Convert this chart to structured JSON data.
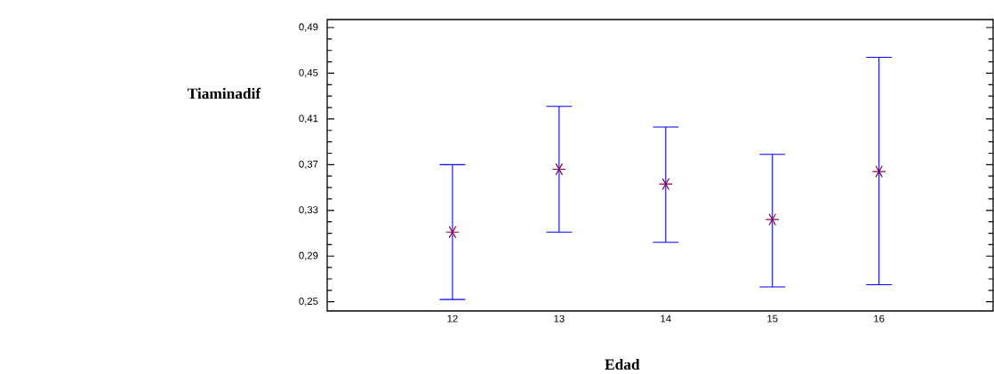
{
  "chart_data": {
    "type": "scatter",
    "xlabel": "Edad",
    "ylabel": "Tiaminadif",
    "categories": [
      "12",
      "13",
      "14",
      "15",
      "16"
    ],
    "series": [
      {
        "color": "#8b0045",
        "values": [
          0.311,
          0.366,
          0.353,
          0.322,
          0.364
        ],
        "errors": [
          [
            0.252,
            0.37
          ],
          [
            0.311,
            0.421
          ],
          [
            0.302,
            0.403
          ],
          [
            0.263,
            0.379
          ],
          [
            0.265,
            0.464
          ]
        ]
      }
    ],
    "ylim": [
      0.242,
      0.497
    ],
    "yticks": [
      {
        "value": 0.25,
        "label": "0,25"
      },
      {
        "value": 0.29,
        "label": "0,29"
      },
      {
        "value": 0.33,
        "label": "0,33"
      },
      {
        "value": 0.37,
        "label": "0,37"
      },
      {
        "value": 0.41,
        "label": "0,41"
      },
      {
        "value": 0.45,
        "label": "0,45"
      },
      {
        "value": 0.49,
        "label": "0,49"
      }
    ],
    "marker": "cross",
    "grid": false
  }
}
